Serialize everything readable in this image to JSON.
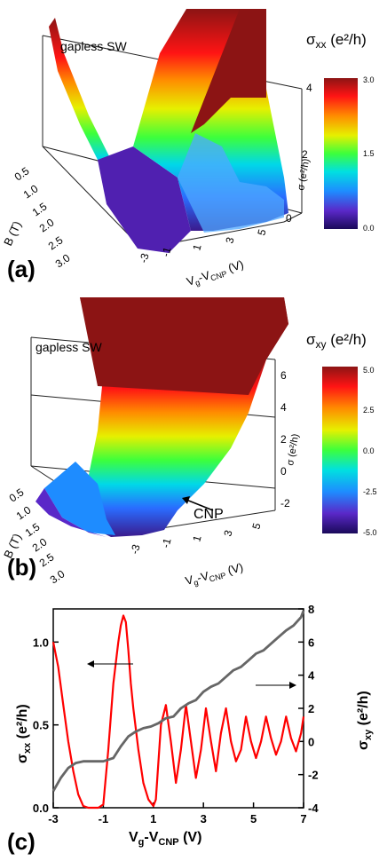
{
  "chart_data": [
    {
      "panel": "(a)",
      "type": "area",
      "surface_3d": true,
      "annotation": "gapless SW",
      "colorbar_label_main": "σ",
      "colorbar_label_sub": "xx",
      "colorbar_label_units": " (e²/h)",
      "colorbar_ticks": [
        "3.0",
        "1.5",
        "0.0"
      ],
      "colorbar_range": [
        0.0,
        3.0
      ],
      "colorbar_colors": [
        "#1a0a5a",
        "#5a28c8",
        "#1e8cff",
        "#00e0e0",
        "#3cff3c",
        "#e6f000",
        "#ff8c00",
        "#ff1414",
        "#8c1414"
      ],
      "b_axis_label": "B (T)",
      "b_ticks": [
        "0.5",
        "1.0",
        "1.5",
        "2.0",
        "2.5",
        "3.0"
      ],
      "v_axis_label": "V",
      "v_axis_sub_g": "g",
      "v_axis_sub_cnp": "CNP",
      "v_axis_units": " (V)",
      "v_ticks": [
        "-3",
        "-1",
        "1",
        "3",
        "5"
      ],
      "z_axis_label": "σ (e²/h)",
      "z_ticks": [
        "0",
        "2",
        "4"
      ],
      "z_range": [
        0,
        4
      ]
    },
    {
      "panel": "(b)",
      "type": "area",
      "surface_3d": true,
      "annotation": "gapless SW",
      "cnp_label": "CNP",
      "colorbar_label_main": "σ",
      "colorbar_label_sub": "xy",
      "colorbar_label_units": " (e²/h)",
      "colorbar_ticks": [
        "5.0",
        "2.5",
        "0.0",
        "-2.5",
        "-5.0"
      ],
      "colorbar_range": [
        -5.0,
        5.0
      ],
      "colorbar_colors": [
        "#1a0a5a",
        "#5a28c8",
        "#1e8cff",
        "#00e0e0",
        "#3cff3c",
        "#e6f000",
        "#ff8c00",
        "#ff1414",
        "#8c1414"
      ],
      "b_axis_label": "B (T)",
      "b_ticks": [
        "0.5",
        "1.0",
        "1.5",
        "2.0",
        "2.5",
        "3.0"
      ],
      "v_axis_label": "V",
      "v_axis_sub_g": "g",
      "v_axis_sub_cnp": "CNP",
      "v_axis_units": " (V)",
      "v_ticks": [
        "-3",
        "-1",
        "1",
        "3",
        "5"
      ],
      "z_axis_label": "σ (e²/h)",
      "z_ticks": [
        "-2",
        "0",
        "2",
        "4",
        "6"
      ],
      "z_range": [
        -3,
        7
      ]
    },
    {
      "panel": "(c)",
      "type": "line",
      "x_axis_label": "V",
      "x_sub_g": "g",
      "x_sub_cnp": "CNP",
      "x_units": " (V)",
      "xlim": [
        -3,
        7
      ],
      "x_ticks": [
        -3,
        -1,
        1,
        3,
        5,
        7
      ],
      "ylim_left": [
        0,
        1.2
      ],
      "y_ticks_left": [
        "0.0",
        "0.5",
        "1.0"
      ],
      "y_ticks_left_values": [
        0,
        0.5,
        1.0
      ],
      "ylabel_left_main": "σ",
      "ylabel_left_sub": "xx",
      "ylabel_left_units": " (e²/h)",
      "ylim_right": [
        -4,
        8
      ],
      "y_ticks_right": [
        -4,
        -2,
        0,
        2,
        4,
        6,
        8
      ],
      "ylabel_right_main": "σ",
      "ylabel_right_sub": "xy",
      "ylabel_right_units": " (e²/h)",
      "series": [
        {
          "axis": "left",
          "color": "#ff0000",
          "x": [
            -3.0,
            -2.8,
            -2.6,
            -2.4,
            -2.2,
            -2.0,
            -1.8,
            -1.6,
            -1.4,
            -1.2,
            -1.0,
            -0.8,
            -0.6,
            -0.4,
            -0.3,
            -0.2,
            -0.1,
            0.0,
            0.1,
            0.2,
            0.4,
            0.6,
            0.8,
            1.0,
            1.1,
            1.3,
            1.5,
            1.7,
            1.9,
            2.1,
            2.3,
            2.5,
            2.7,
            2.9,
            3.1,
            3.3,
            3.5,
            3.7,
            3.9,
            4.1,
            4.3,
            4.5,
            4.7,
            4.9,
            5.1,
            5.3,
            5.5,
            5.7,
            5.9,
            6.1,
            6.3,
            6.5,
            6.7,
            6.9,
            7.0
          ],
          "y": [
            1.0,
            0.85,
            0.62,
            0.4,
            0.22,
            0.08,
            0.01,
            0.0,
            0.0,
            0.0,
            0.02,
            0.35,
            0.75,
            1.0,
            1.1,
            1.16,
            1.12,
            0.95,
            0.75,
            0.6,
            0.35,
            0.15,
            0.05,
            0.01,
            0.05,
            0.5,
            0.62,
            0.4,
            0.15,
            0.35,
            0.62,
            0.4,
            0.18,
            0.35,
            0.6,
            0.4,
            0.22,
            0.45,
            0.6,
            0.4,
            0.28,
            0.35,
            0.55,
            0.4,
            0.3,
            0.4,
            0.55,
            0.42,
            0.32,
            0.4,
            0.55,
            0.42,
            0.34,
            0.45,
            0.55
          ]
        },
        {
          "axis": "right",
          "color": "#666666",
          "x": [
            -3.0,
            -2.7,
            -2.4,
            -2.1,
            -1.8,
            -1.5,
            -1.0,
            -0.6,
            -0.3,
            0.0,
            0.3,
            0.6,
            0.9,
            1.2,
            1.5,
            1.8,
            2.1,
            2.4,
            2.7,
            3.0,
            3.3,
            3.6,
            3.9,
            4.2,
            4.5,
            4.8,
            5.1,
            5.4,
            5.7,
            6.0,
            6.3,
            6.6,
            6.9,
            7.0
          ],
          "y": [
            -3.0,
            -2.2,
            -1.6,
            -1.3,
            -1.2,
            -1.2,
            -1.2,
            -1.0,
            -0.3,
            0.3,
            0.6,
            0.8,
            0.9,
            1.1,
            1.4,
            1.5,
            2.0,
            2.3,
            2.5,
            3.0,
            3.3,
            3.5,
            3.9,
            4.3,
            4.5,
            4.9,
            5.3,
            5.5,
            5.9,
            6.3,
            6.7,
            7.0,
            7.5,
            7.9
          ]
        }
      ]
    }
  ]
}
